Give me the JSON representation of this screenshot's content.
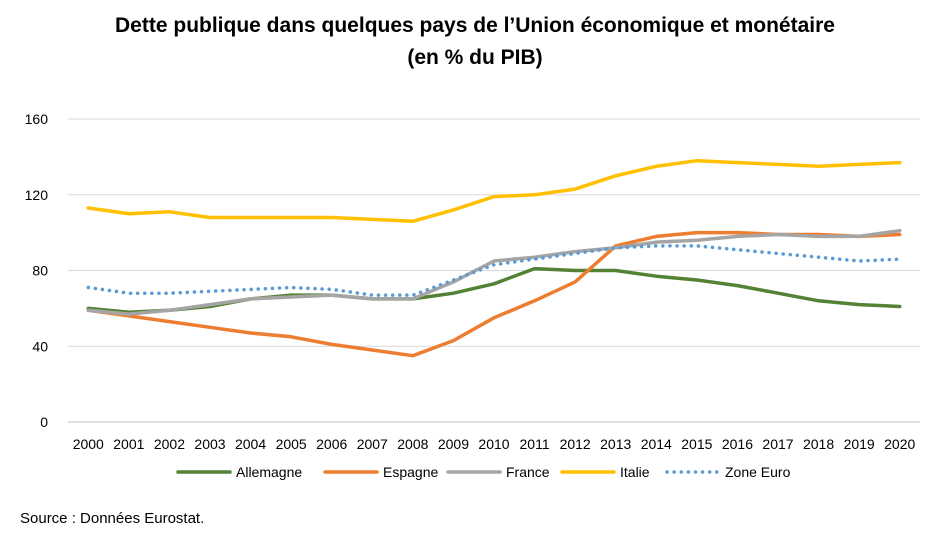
{
  "title": "Dette publique dans quelques pays de l’Union économique et monétaire",
  "subtitle": "(en % du PIB)",
  "source": "Source : Données Eurostat.",
  "chart_data": {
    "type": "line",
    "title": "Dette publique dans quelques pays de l’Union économique et monétaire",
    "subtitle": "(en % du PIB)",
    "xlabel": "",
    "ylabel": "",
    "ylim": [
      0,
      160
    ],
    "yticks": [
      0,
      40,
      80,
      120,
      160
    ],
    "grid": "horizontal",
    "legend": "bottom",
    "categories": [
      "2000",
      "2001",
      "2002",
      "2003",
      "2004",
      "2005",
      "2006",
      "2007",
      "2008",
      "2009",
      "2010",
      "2011",
      "2012",
      "2013",
      "2014",
      "2015",
      "2016",
      "2017",
      "2018",
      "2019",
      "2020"
    ],
    "series": [
      {
        "name": "Allemagne",
        "color": "#548235",
        "style": "solid",
        "values": [
          60,
          58,
          59,
          61,
          65,
          67,
          67,
          65,
          65,
          68,
          73,
          81,
          80,
          80,
          77,
          75,
          72,
          68,
          64,
          62,
          61
        ]
      },
      {
        "name": "Espagne",
        "color": "#ED7D31",
        "style": "solid",
        "values": [
          59,
          56,
          53,
          50,
          47,
          45,
          41,
          38,
          35,
          43,
          55,
          64,
          74,
          93,
          98,
          100,
          100,
          99,
          99,
          98,
          99
        ]
      },
      {
        "name": "France",
        "color": "#A5A5A5",
        "style": "solid",
        "values": [
          59,
          57,
          59,
          62,
          65,
          66,
          67,
          65,
          65,
          74,
          85,
          87,
          90,
          92,
          95,
          96,
          98,
          99,
          98,
          98,
          101
        ]
      },
      {
        "name": "Italie",
        "color": "#FFC000",
        "style": "solid",
        "values": [
          113,
          110,
          111,
          108,
          108,
          108,
          108,
          107,
          106,
          112,
          119,
          120,
          123,
          130,
          135,
          138,
          137,
          136,
          135,
          136,
          137
        ]
      },
      {
        "name": "Zone Euro",
        "color": "#5B9BD5",
        "style": "dotted",
        "values": [
          71,
          68,
          68,
          69,
          70,
          71,
          70,
          67,
          67,
          75,
          83,
          86,
          89,
          92,
          93,
          93,
          91,
          89,
          87,
          85,
          86
        ]
      }
    ]
  }
}
